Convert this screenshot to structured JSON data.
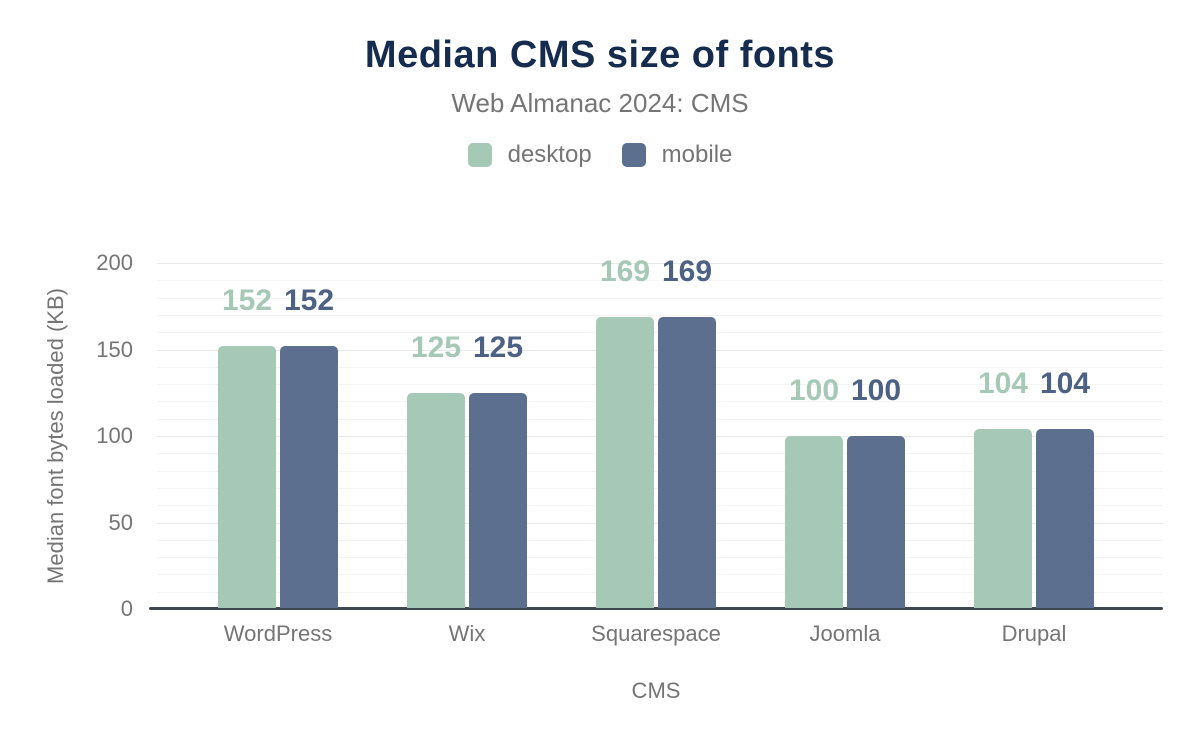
{
  "header": {
    "title": "Median CMS size of fonts",
    "subtitle": "Web Almanac 2024: CMS"
  },
  "chart_data": {
    "type": "bar",
    "title": "Median CMS size of fonts",
    "subtitle": "Web Almanac 2024: CMS",
    "categories": [
      "WordPress",
      "Wix",
      "Squarespace",
      "Joomla",
      "Drupal"
    ],
    "series": [
      {
        "name": "desktop",
        "color": "#a6c8b7",
        "label_color": "#a6c8b7",
        "values": [
          152,
          125,
          169,
          100,
          104
        ]
      },
      {
        "name": "mobile",
        "color": "#5c6f8f",
        "label_color": "#4d6185",
        "values": [
          152,
          125,
          169,
          100,
          104
        ]
      }
    ],
    "xlabel": "CMS",
    "ylabel": "Median font bytes loaded (KB)",
    "ylim": [
      0,
      200
    ],
    "yticks": [
      0,
      50,
      100,
      150,
      200
    ],
    "grid": {
      "minor_step": 10,
      "major_step": 50,
      "horizontal": true
    },
    "legend_position": "top",
    "bar_value_labels": true
  },
  "colors": {
    "title_text": "#152c4e",
    "muted_text": "#757575",
    "axis_line": "#40474f",
    "background": "#ffffff",
    "desktop_accent": "#a6c8b7",
    "mobile_accent": "#5c6f8f"
  }
}
